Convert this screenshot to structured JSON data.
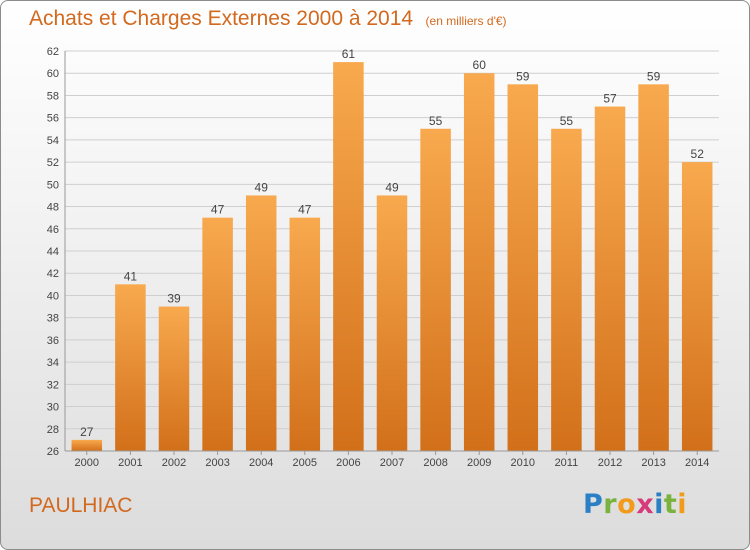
{
  "header": {
    "title": "Achats et Charges Externes 2000 à 2014",
    "subtitle": "(en milliers d'€)"
  },
  "footer": {
    "place": "PAULHIAC",
    "brand": "Proxiti",
    "brand_letters": [
      {
        "ch": "P",
        "color": "#2b80c5"
      },
      {
        "ch": "r",
        "color": "#79b33e"
      },
      {
        "ch": "o",
        "color": "#f29a1c"
      },
      {
        "ch": "x",
        "color": "#d73a7a"
      },
      {
        "ch": "i",
        "color": "#2b80c5"
      },
      {
        "ch": "t",
        "color": "#79b33e"
      },
      {
        "ch": "i",
        "color": "#f29a1c"
      }
    ]
  },
  "chart_data": {
    "type": "bar",
    "categories": [
      "2000",
      "2001",
      "2002",
      "2003",
      "2004",
      "2005",
      "2006",
      "2007",
      "2008",
      "2009",
      "2010",
      "2011",
      "2012",
      "2013",
      "2014"
    ],
    "values": [
      27,
      41,
      39,
      47,
      49,
      47,
      61,
      49,
      55,
      60,
      59,
      55,
      57,
      59,
      52
    ],
    "ylim": [
      26,
      62
    ],
    "yticks": [
      26,
      28,
      30,
      32,
      34,
      36,
      38,
      40,
      42,
      44,
      46,
      48,
      50,
      52,
      54,
      56,
      58,
      60,
      62
    ],
    "grid": true,
    "colors": {
      "bar_top": "#f8a94e",
      "bar_bottom": "#d2701a",
      "text": "#d2691e",
      "label": "#444444"
    }
  }
}
